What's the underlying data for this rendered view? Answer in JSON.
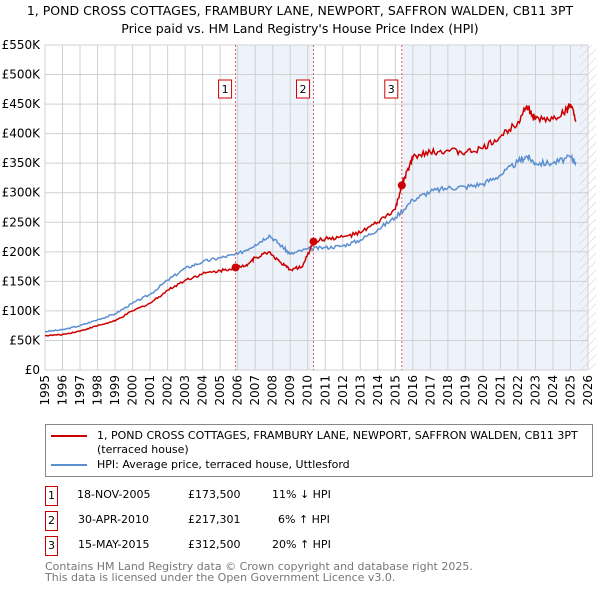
{
  "title": "1, POND CROSS COTTAGES, FRAMBURY LANE, NEWPORT, SAFFRON WALDEN, CB11 3PT",
  "subtitle": "Price paid vs. HM Land Registry's House Price Index (HPI)",
  "chart_data": {
    "type": "line",
    "xlim": [
      1995,
      2026
    ],
    "ylim": [
      0,
      550000
    ],
    "y_ticks": [
      "£0",
      "£50K",
      "£100K",
      "£150K",
      "£200K",
      "£250K",
      "£300K",
      "£350K",
      "£400K",
      "£450K",
      "£500K",
      "£550K"
    ],
    "x_ticks": [
      "1995",
      "1996",
      "1997",
      "1998",
      "1999",
      "2000",
      "2001",
      "2002",
      "2003",
      "2004",
      "2005",
      "2006",
      "2007",
      "2008",
      "2009",
      "2010",
      "2011",
      "2012",
      "2013",
      "2014",
      "2015",
      "2016",
      "2017",
      "2018",
      "2019",
      "2020",
      "2021",
      "2022",
      "2023",
      "2024",
      "2025",
      "2026"
    ],
    "series": [
      {
        "name": "1, POND CROSS COTTAGES, FRAMBURY LANE, NEWPORT, SAFFRON WALDEN, CB11 3PT (terraced house)",
        "color": "#cc0000",
        "x": [
          1995,
          1996,
          1997,
          1998,
          1999,
          2000,
          2001,
          2002,
          2003,
          2004,
          2005,
          2005.88,
          2006.5,
          2007,
          2007.8,
          2008.5,
          2009,
          2009.7,
          2010.33,
          2011,
          2012,
          2013,
          2014,
          2015,
          2015.37,
          2015.8,
          2016,
          2017,
          2018,
          2019,
          2020,
          2021,
          2022,
          2022.5,
          2022.8,
          2023,
          2024,
          2024.8,
          2025,
          2025.3
        ],
        "y": [
          58000,
          60000,
          66000,
          75000,
          83000,
          100000,
          113000,
          135000,
          152000,
          163000,
          168000,
          173500,
          178000,
          190000,
          200000,
          180000,
          170000,
          175000,
          217301,
          222000,
          225000,
          232000,
          250000,
          272000,
          312500,
          345000,
          360000,
          368000,
          372000,
          368000,
          375000,
          395000,
          420000,
          448000,
          430000,
          425000,
          425000,
          440000,
          450000,
          420000
        ]
      },
      {
        "name": "HPI: Average price, terraced house, Uttlesford",
        "color": "#5b8fd0",
        "x": [
          1995,
          1996,
          1997,
          1998,
          1999,
          2000,
          2001,
          2002,
          2003,
          2004,
          2005,
          2006,
          2007,
          2007.8,
          2008.5,
          2009,
          2010,
          2011,
          2012,
          2013,
          2014,
          2015,
          2016,
          2017,
          2018,
          2019,
          2020,
          2021,
          2022,
          2022.5,
          2023,
          2024,
          2025,
          2025.3
        ],
        "y": [
          65000,
          68000,
          75000,
          85000,
          95000,
          113000,
          128000,
          152000,
          172000,
          183000,
          190000,
          196000,
          212000,
          228000,
          210000,
          196000,
          205000,
          207000,
          210000,
          220000,
          238000,
          258000,
          288000,
          302000,
          308000,
          310000,
          315000,
          330000,
          352000,
          362000,
          350000,
          350000,
          360000,
          352000
        ]
      }
    ],
    "sales": [
      {
        "label": "1",
        "x": 2005.88,
        "y": 173500
      },
      {
        "label": "2",
        "x": 2010.33,
        "y": 217301
      },
      {
        "label": "3",
        "x": 2015.37,
        "y": 312500
      }
    ]
  },
  "legend": {
    "property": "1, POND CROSS COTTAGES, FRAMBURY LANE, NEWPORT, SAFFRON WALDEN, CB11 3PT (terraced house)",
    "hpi": "HPI: Average price, terraced house, Uttlesford"
  },
  "sales_table": [
    {
      "num": "1",
      "date": "18-NOV-2005",
      "price": "£173,500",
      "hpi": "11% ↓ HPI"
    },
    {
      "num": "2",
      "date": "30-APR-2010",
      "price": "£217,301",
      "hpi": "6% ↑ HPI"
    },
    {
      "num": "3",
      "date": "15-MAY-2015",
      "price": "£312,500",
      "hpi": "20% ↑ HPI"
    }
  ],
  "footer": {
    "line1": "Contains HM Land Registry data © Crown copyright and database right 2025.",
    "line2": "This data is licensed under the Open Government Licence v3.0."
  }
}
